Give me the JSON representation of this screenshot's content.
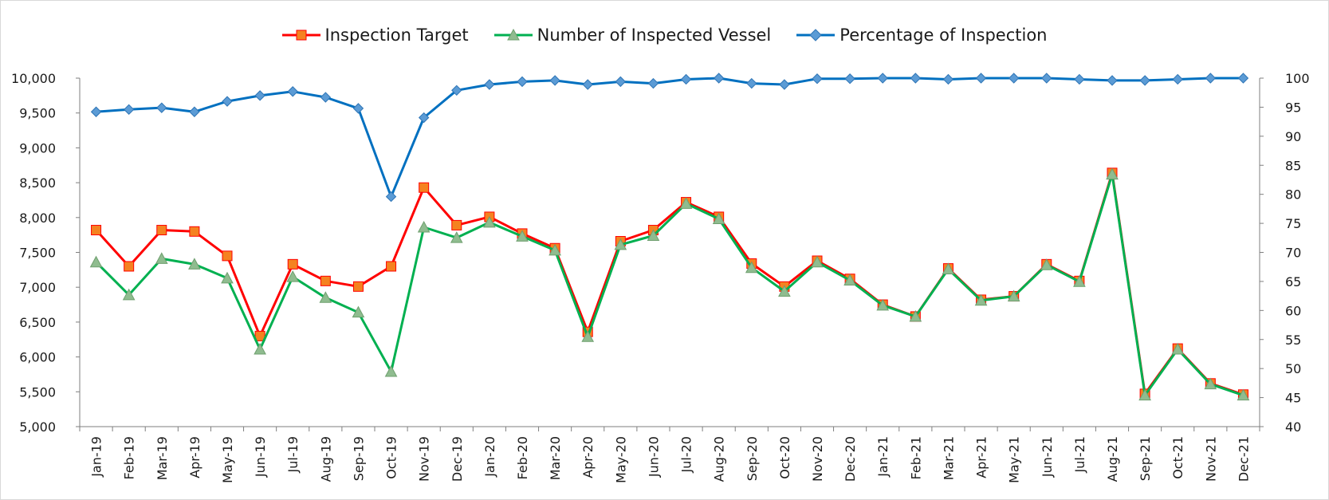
{
  "chart_data": {
    "type": "line",
    "categories": [
      "Jan-19",
      "Feb-19",
      "Mar-19",
      "Apr-19",
      "May-19",
      "Jun-19",
      "Jul-19",
      "Aug-19",
      "Sep-19",
      "Oct-19",
      "Nov-19",
      "Dec-19",
      "Jan-20",
      "Feb-20",
      "Mar-20",
      "Apr-20",
      "May-20",
      "Jun-20",
      "Jul-20",
      "Aug-20",
      "Sep-20",
      "Oct-20",
      "Nov-20",
      "Dec-20",
      "Jan-21",
      "Feb-21",
      "Mar-21",
      "Apr-21",
      "May-21",
      "Jun-21",
      "Jul-21",
      "Aug-21",
      "Sep-21",
      "Oct-21",
      "Nov-21",
      "Dec-21"
    ],
    "series": [
      {
        "name": "Inspection Target",
        "axis": "left",
        "color": "#ff0000",
        "marker": "square",
        "marker_color": "#f58220",
        "values": [
          7820,
          7300,
          7820,
          7800,
          7450,
          6300,
          7330,
          7090,
          7010,
          7300,
          8430,
          7890,
          8010,
          7770,
          7560,
          6360,
          7660,
          7820,
          8220,
          8010,
          7340,
          7010,
          7380,
          7120,
          6750,
          6580,
          7270,
          6820,
          6870,
          7330,
          7090,
          8640,
          5470,
          6120,
          5620,
          5460
        ]
      },
      {
        "name": "Number of Inspected Vessel",
        "axis": "left",
        "color": "#00b050",
        "marker": "triangle",
        "marker_color": "#8fbc8f",
        "values": [
          7360,
          6890,
          7410,
          7330,
          7130,
          6110,
          7150,
          6850,
          6640,
          5790,
          7860,
          7710,
          7930,
          7730,
          7530,
          6290,
          7610,
          7740,
          8200,
          7980,
          7280,
          6940,
          7360,
          7100,
          6740,
          6580,
          7260,
          6810,
          6870,
          7320,
          7080,
          8620,
          5450,
          6110,
          5610,
          5450
        ]
      },
      {
        "name": "Percentage of Inspection",
        "axis": "right",
        "color": "#0070c0",
        "marker": "diamond",
        "marker_color": "#5b9bd5",
        "values": [
          94.2,
          94.6,
          94.9,
          94.2,
          96.0,
          97.0,
          97.7,
          96.7,
          94.8,
          79.6,
          93.2,
          97.9,
          98.9,
          99.4,
          99.6,
          98.9,
          99.4,
          99.1,
          99.8,
          100.0,
          99.1,
          98.9,
          99.9,
          99.9,
          100.0,
          100.0,
          99.8,
          100.0,
          100.0,
          100.0,
          99.8,
          99.6,
          99.6,
          99.8,
          100.0,
          100.0
        ]
      }
    ],
    "y_left": {
      "min": 5000,
      "max": 10000,
      "step": 500,
      "tick_labels": [
        "5,000",
        "5,500",
        "6,000",
        "6,500",
        "7,000",
        "7,500",
        "8,000",
        "8,500",
        "9,000",
        "9,500",
        "10,000"
      ]
    },
    "y_right": {
      "min": 40,
      "max": 100,
      "step": 5,
      "tick_labels": [
        "40",
        "45",
        "50",
        "55",
        "60",
        "65",
        "70",
        "75",
        "80",
        "85",
        "90",
        "95",
        "100"
      ]
    },
    "grid": false,
    "legend_position": "top-center"
  }
}
